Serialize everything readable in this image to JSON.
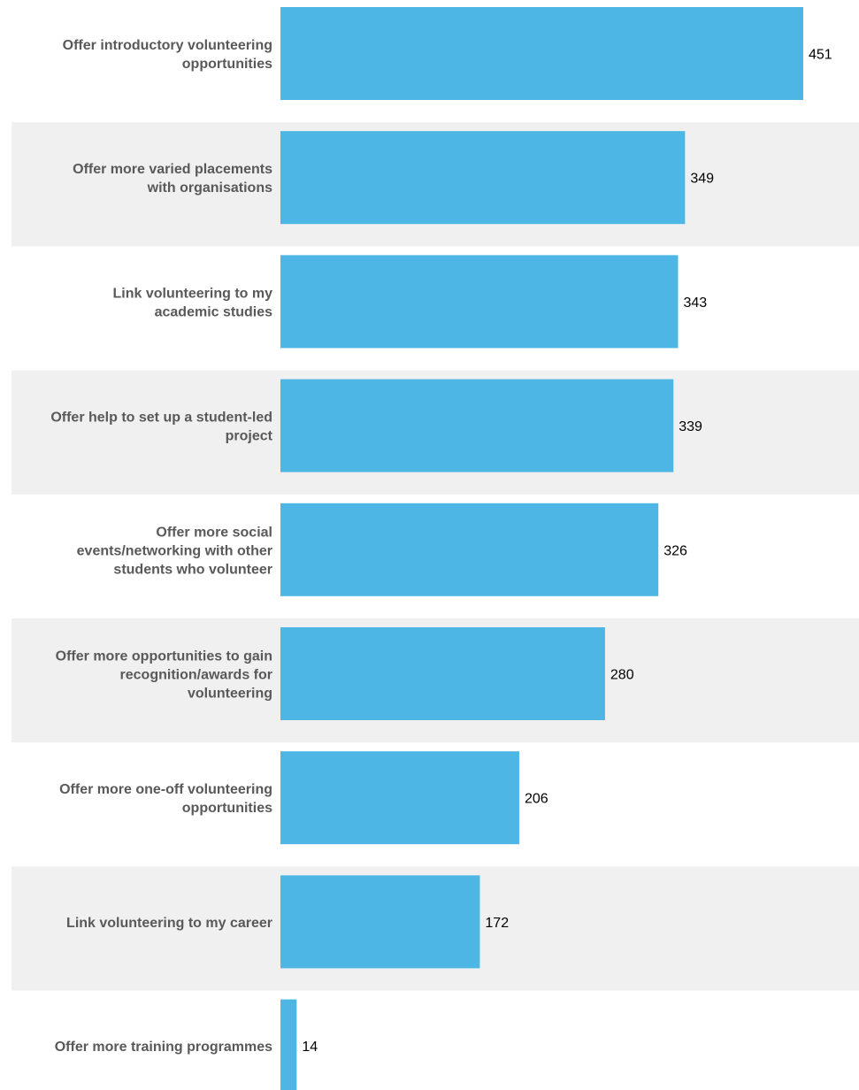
{
  "chart_data": {
    "type": "bar",
    "orientation": "horizontal",
    "categories": [
      [
        "Offer introductory volunteering",
        "opportunities"
      ],
      [
        "Offer more varied placements",
        "with organisations"
      ],
      [
        "Link volunteering to my",
        "academic studies"
      ],
      [
        "Offer help to set up a student-led",
        "project"
      ],
      [
        "Offer more social",
        "events/networking with other",
        "students who volunteer"
      ],
      [
        "Offer more opportunities to gain",
        "recognition/awards for",
        "volunteering"
      ],
      [
        "Offer more one-off volunteering",
        "opportunities"
      ],
      [
        "Link volunteering to my career"
      ],
      [
        "Offer more training programmes"
      ]
    ],
    "values": [
      451,
      349,
      343,
      339,
      326,
      280,
      206,
      172,
      14
    ],
    "data_labels": [
      "451",
      "349",
      "343",
      "339",
      "326",
      "280",
      "206",
      "172",
      "14"
    ],
    "title": "",
    "xlabel": "",
    "ylabel": "",
    "xlim": [
      0,
      451
    ],
    "grid": false,
    "legend": "none",
    "colors": {
      "bar": "#4db6e4",
      "band": "#f0f0f0",
      "category_text": "#595959",
      "value_text": "#000000"
    }
  }
}
